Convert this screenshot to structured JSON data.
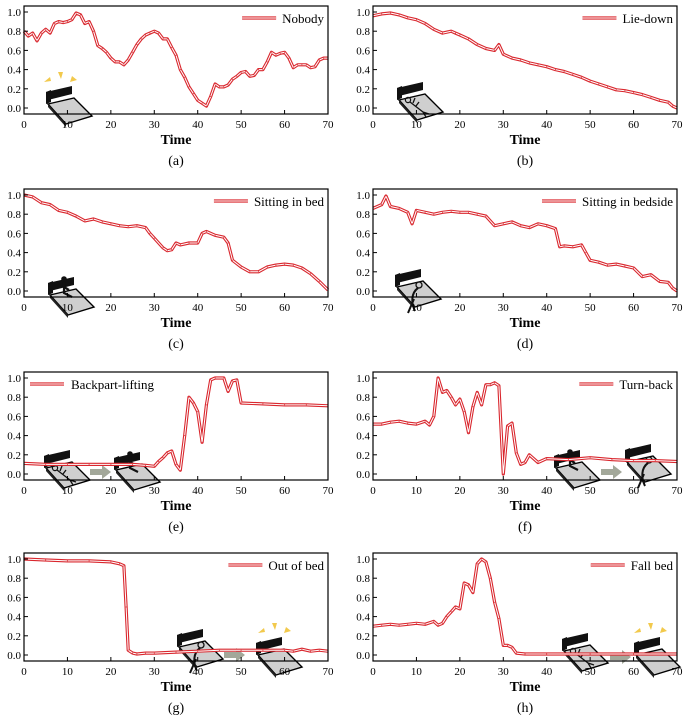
{
  "figure": {
    "xlabel": "Time",
    "x_ticks": [
      "0",
      "10",
      "20",
      "30",
      "40",
      "50",
      "60",
      "70"
    ],
    "y_ticks": [
      "0.0",
      "0.2",
      "0.4",
      "0.6",
      "0.8",
      "1.0"
    ],
    "line_color": "#d9272e",
    "arrow_color": "#a3a89a",
    "accent_yellow": "#f2c94c"
  },
  "chart_data": [
    {
      "type": "line",
      "caption": "(a)",
      "legend": "Nobody",
      "legend_position": "top-right",
      "xlabel": "Time",
      "ylabel": "",
      "xlim": [
        0,
        70
      ],
      "ylim": [
        0,
        1
      ],
      "x": [
        0,
        1,
        2,
        3,
        4,
        5,
        6,
        7,
        8,
        9,
        10,
        11,
        12,
        13,
        14,
        15,
        16,
        17,
        18,
        19,
        20,
        21,
        22,
        23,
        24,
        25,
        26,
        27,
        28,
        29,
        30,
        31,
        32,
        33,
        34,
        35,
        36,
        37,
        38,
        39,
        40,
        41,
        42,
        43,
        44,
        45,
        46,
        47,
        48,
        49,
        50,
        51,
        52,
        53,
        54,
        55,
        56,
        57,
        58,
        59,
        60,
        61,
        62,
        63,
        64,
        65,
        66,
        67,
        68,
        69,
        70
      ],
      "values": [
        0.8,
        0.75,
        0.78,
        0.7,
        0.78,
        0.82,
        0.78,
        0.88,
        0.9,
        0.89,
        0.9,
        0.92,
        0.99,
        0.97,
        0.88,
        0.9,
        0.8,
        0.65,
        0.62,
        0.58,
        0.52,
        0.48,
        0.48,
        0.45,
        0.5,
        0.58,
        0.66,
        0.72,
        0.76,
        0.78,
        0.8,
        0.78,
        0.72,
        0.72,
        0.63,
        0.55,
        0.4,
        0.32,
        0.22,
        0.15,
        0.08,
        0.05,
        0.02,
        0.12,
        0.25,
        0.22,
        0.22,
        0.24,
        0.3,
        0.33,
        0.37,
        0.38,
        0.33,
        0.34,
        0.4,
        0.4,
        0.48,
        0.58,
        0.55,
        0.57,
        0.58,
        0.52,
        0.42,
        0.45,
        0.45,
        0.45,
        0.42,
        0.43,
        0.5,
        0.52,
        0.52
      ],
      "icon": "empty-bed-icon"
    },
    {
      "type": "line",
      "caption": "(b)",
      "legend": "Lie-down",
      "legend_position": "top-right",
      "xlabel": "Time",
      "ylabel": "",
      "xlim": [
        0,
        70
      ],
      "ylim": [
        0,
        1
      ],
      "x": [
        0,
        2,
        4,
        6,
        8,
        10,
        12,
        14,
        16,
        18,
        19,
        20,
        22,
        24,
        26,
        28,
        29,
        30,
        32,
        34,
        36,
        38,
        40,
        42,
        44,
        46,
        48,
        50,
        52,
        54,
        56,
        58,
        60,
        62,
        64,
        66,
        68,
        69,
        70
      ],
      "values": [
        0.96,
        0.98,
        0.99,
        0.97,
        0.94,
        0.92,
        0.88,
        0.82,
        0.78,
        0.8,
        0.78,
        0.76,
        0.72,
        0.66,
        0.62,
        0.6,
        0.66,
        0.56,
        0.52,
        0.5,
        0.47,
        0.45,
        0.43,
        0.4,
        0.38,
        0.35,
        0.32,
        0.28,
        0.25,
        0.22,
        0.19,
        0.18,
        0.16,
        0.14,
        0.11,
        0.08,
        0.06,
        0.02,
        0.0
      ],
      "icon": "lying-person-icon"
    },
    {
      "type": "line",
      "caption": "(c)",
      "legend": "Sitting in bed",
      "legend_position": "top-right",
      "xlabel": "Time",
      "ylabel": "",
      "xlim": [
        0,
        70
      ],
      "ylim": [
        0,
        1
      ],
      "x": [
        0,
        2,
        4,
        6,
        8,
        10,
        12,
        14,
        16,
        18,
        20,
        22,
        24,
        26,
        28,
        29,
        30,
        32,
        33,
        34,
        35,
        36,
        38,
        40,
        41,
        42,
        44,
        46,
        47,
        48,
        50,
        52,
        54,
        56,
        58,
        60,
        62,
        64,
        66,
        68,
        70
      ],
      "values": [
        1.0,
        0.98,
        0.92,
        0.9,
        0.84,
        0.82,
        0.78,
        0.73,
        0.75,
        0.72,
        0.7,
        0.68,
        0.67,
        0.68,
        0.66,
        0.6,
        0.55,
        0.45,
        0.42,
        0.43,
        0.5,
        0.48,
        0.5,
        0.5,
        0.6,
        0.62,
        0.58,
        0.56,
        0.5,
        0.32,
        0.25,
        0.2,
        0.2,
        0.25,
        0.27,
        0.28,
        0.27,
        0.24,
        0.18,
        0.1,
        0.01
      ],
      "icon": "sitting-person-icon"
    },
    {
      "type": "line",
      "caption": "(d)",
      "legend": "Sitting in bedside",
      "legend_position": "top-right",
      "xlabel": "Time",
      "ylabel": "",
      "xlim": [
        0,
        70
      ],
      "ylim": [
        0,
        1
      ],
      "x": [
        0,
        2,
        3,
        4,
        6,
        8,
        9,
        10,
        12,
        14,
        16,
        18,
        20,
        22,
        24,
        26,
        28,
        30,
        32,
        34,
        36,
        38,
        40,
        42,
        43,
        44,
        46,
        48,
        49,
        50,
        52,
        54,
        56,
        58,
        60,
        62,
        64,
        66,
        68,
        69,
        70
      ],
      "values": [
        0.86,
        0.9,
        0.99,
        0.88,
        0.86,
        0.82,
        0.7,
        0.84,
        0.82,
        0.8,
        0.82,
        0.83,
        0.82,
        0.82,
        0.8,
        0.78,
        0.68,
        0.7,
        0.72,
        0.68,
        0.66,
        0.7,
        0.68,
        0.65,
        0.46,
        0.47,
        0.46,
        0.48,
        0.4,
        0.32,
        0.3,
        0.27,
        0.28,
        0.26,
        0.24,
        0.15,
        0.17,
        0.1,
        0.09,
        0.03,
        0.0
      ],
      "icon": "bedside-person-icon"
    },
    {
      "type": "line",
      "caption": "(e)",
      "legend": "Backpart-lifting",
      "legend_position": "top-left",
      "xlabel": "Time",
      "ylabel": "",
      "xlim": [
        0,
        70
      ],
      "ylim": [
        0,
        1
      ],
      "x": [
        0,
        5,
        10,
        15,
        20,
        25,
        28,
        30,
        31,
        32,
        33,
        34,
        35,
        36,
        37,
        38,
        39,
        40,
        41,
        42,
        43,
        44,
        46,
        47,
        48,
        49,
        50,
        55,
        60,
        65,
        70
      ],
      "values": [
        0.11,
        0.1,
        0.1,
        0.1,
        0.1,
        0.1,
        0.09,
        0.08,
        0.13,
        0.17,
        0.22,
        0.24,
        0.1,
        0.04,
        0.4,
        0.8,
        0.74,
        0.65,
        0.33,
        0.72,
        0.98,
        1.0,
        1.0,
        0.86,
        0.97,
        0.98,
        0.74,
        0.73,
        0.72,
        0.72,
        0.71
      ],
      "icon": "backpart-lifting-icon"
    },
    {
      "type": "line",
      "caption": "(f)",
      "legend": "Turn-back",
      "legend_position": "top-right",
      "xlabel": "Time",
      "ylabel": "",
      "xlim": [
        0,
        70
      ],
      "ylim": [
        0,
        1
      ],
      "x": [
        0,
        2,
        4,
        6,
        8,
        10,
        12,
        13,
        14,
        15,
        16,
        17,
        18,
        19,
        20,
        21,
        22,
        23,
        24,
        25,
        26,
        27,
        28,
        29,
        30,
        31,
        32,
        33,
        34,
        35,
        36,
        38,
        40,
        45,
        50,
        55,
        60,
        65,
        70
      ],
      "values": [
        0.52,
        0.52,
        0.54,
        0.55,
        0.53,
        0.52,
        0.55,
        0.51,
        0.6,
        1.0,
        0.85,
        0.87,
        0.8,
        0.72,
        0.78,
        0.65,
        0.43,
        0.7,
        0.85,
        0.72,
        0.93,
        0.93,
        0.95,
        0.92,
        0.0,
        0.5,
        0.53,
        0.22,
        0.1,
        0.12,
        0.2,
        0.12,
        0.16,
        0.15,
        0.17,
        0.15,
        0.14,
        0.14,
        0.13
      ],
      "icon": "turn-back-icon"
    },
    {
      "type": "line",
      "caption": "(g)",
      "legend": "Out of bed",
      "legend_position": "top-right",
      "xlabel": "Time",
      "ylabel": "",
      "xlim": [
        0,
        70
      ],
      "ylim": [
        0,
        1
      ],
      "x": [
        0,
        5,
        10,
        15,
        20,
        22,
        23,
        23.5,
        24,
        25,
        26,
        28,
        30,
        35,
        40,
        45,
        50,
        55,
        60,
        62,
        64,
        66,
        68,
        70
      ],
      "values": [
        1.0,
        0.99,
        0.98,
        0.98,
        0.97,
        0.95,
        0.93,
        0.5,
        0.05,
        0.02,
        0.01,
        0.02,
        0.02,
        0.03,
        0.04,
        0.05,
        0.05,
        0.05,
        0.05,
        0.04,
        0.06,
        0.04,
        0.05,
        0.04
      ],
      "icon": "out-of-bed-icon"
    },
    {
      "type": "line",
      "caption": "(h)",
      "legend": "Fall bed",
      "legend_position": "top-right",
      "xlabel": "Time",
      "ylabel": "",
      "xlim": [
        0,
        70
      ],
      "ylim": [
        0,
        1
      ],
      "x": [
        0,
        2,
        4,
        6,
        8,
        10,
        12,
        14,
        15,
        16,
        17,
        18,
        19,
        20,
        21,
        22,
        23,
        24,
        25,
        26,
        27,
        28,
        29,
        30,
        31,
        32,
        33,
        35,
        40,
        50,
        60,
        70
      ],
      "values": [
        0.3,
        0.31,
        0.32,
        0.31,
        0.32,
        0.33,
        0.32,
        0.35,
        0.31,
        0.33,
        0.4,
        0.45,
        0.5,
        0.48,
        0.75,
        0.73,
        0.65,
        0.95,
        1.0,
        0.97,
        0.8,
        0.55,
        0.38,
        0.1,
        0.1,
        0.08,
        0.02,
        0.01,
        0.01,
        0.01,
        0.01,
        0.01
      ],
      "icon": "fall-bed-icon"
    }
  ]
}
